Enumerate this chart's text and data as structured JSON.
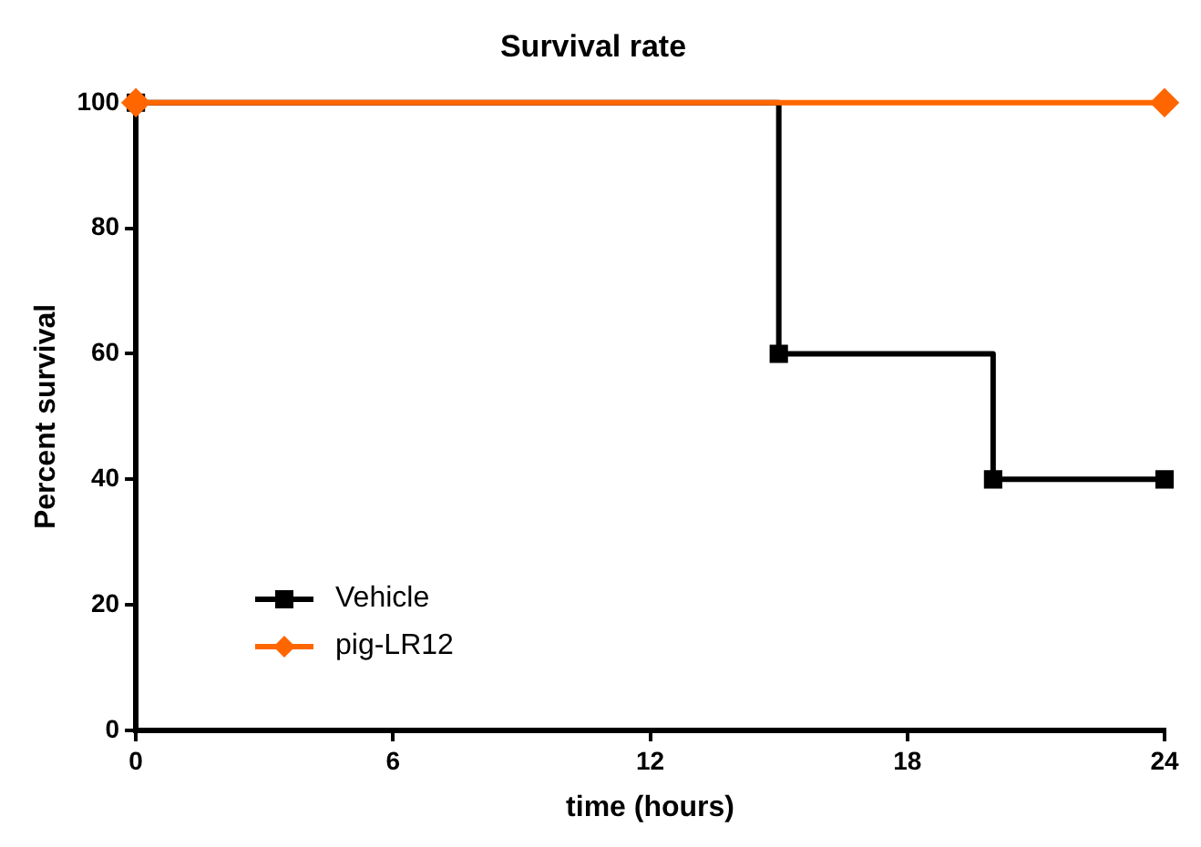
{
  "chart_data": {
    "type": "step",
    "title": "Survival rate",
    "xlabel": "time (hours)",
    "ylabel": "Percent survival",
    "xlim": [
      0,
      24
    ],
    "xticks": [
      0,
      6,
      12,
      18,
      24
    ],
    "ylim": [
      0,
      100
    ],
    "yticks": [
      0,
      20,
      40,
      60,
      80,
      100
    ],
    "legend": "bottom left",
    "grid": false,
    "series": [
      {
        "name": "Vehicle",
        "color": "#000000",
        "marker": "square",
        "x": [
          0,
          15,
          20,
          24
        ],
        "values": [
          100,
          60,
          40,
          40
        ]
      },
      {
        "name": "pig-LR12",
        "color": "#ff6600",
        "marker": "diamond",
        "x": [
          0,
          24
        ],
        "values": [
          100,
          100
        ]
      }
    ]
  }
}
